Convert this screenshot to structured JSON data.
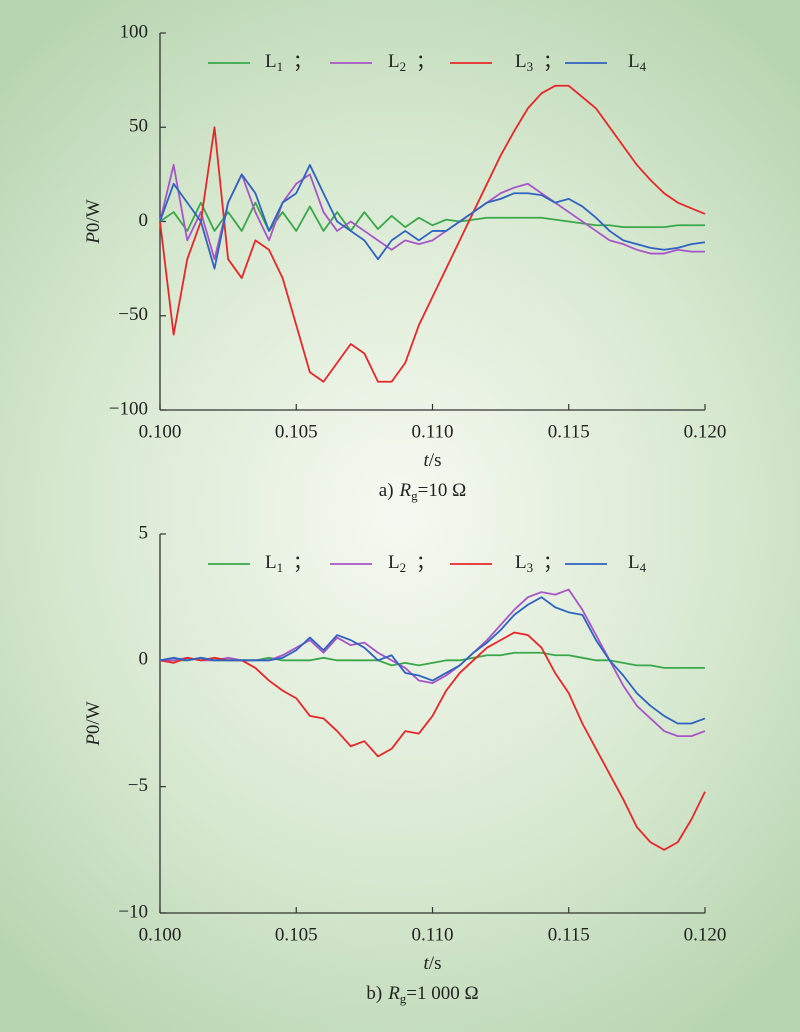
{
  "chart_data": [
    {
      "type": "line",
      "caption": {
        "prefix": "a)",
        "symbol": "R",
        "subscript": "g",
        "value": "=10 Ω"
      },
      "y_label": {
        "symbol": "P",
        "subscript": "0",
        "unit": "/W"
      },
      "x_label": {
        "symbol": "t",
        "unit": "/s"
      },
      "legend_separator": "；",
      "xlim": [
        0.1,
        0.12
      ],
      "xticks": [
        {
          "value": 0.1,
          "label": "0.100"
        },
        {
          "value": 0.105,
          "label": "0.105"
        },
        {
          "value": 0.11,
          "label": "0.110"
        },
        {
          "value": 0.115,
          "label": "0.115"
        },
        {
          "value": 0.12,
          "label": "0.120"
        }
      ],
      "ylim": [
        -100,
        100
      ],
      "yticks": [
        {
          "value": -100,
          "label": "−100"
        },
        {
          "value": -50,
          "label": "−50"
        },
        0,
        50,
        100
      ],
      "x": [
        0.1,
        0.1005,
        0.101,
        0.1015,
        0.102,
        0.1025,
        0.103,
        0.1035,
        0.104,
        0.1045,
        0.105,
        0.1055,
        0.106,
        0.1065,
        0.107,
        0.1075,
        0.108,
        0.1085,
        0.109,
        0.1095,
        0.11,
        0.1105,
        0.111,
        0.1115,
        0.112,
        0.1125,
        0.113,
        0.1135,
        0.114,
        0.1145,
        0.115,
        0.1155,
        0.116,
        0.1165,
        0.117,
        0.1175,
        0.118,
        0.1185,
        0.119,
        0.1195,
        0.12
      ],
      "series": [
        {
          "name": "L1",
          "color": "#3aa84a",
          "values": [
            0,
            5,
            -5,
            10,
            -5,
            5,
            -5,
            10,
            -5,
            5,
            -5,
            8,
            -5,
            5,
            -5,
            5,
            -4,
            3,
            -3,
            2,
            -2,
            1,
            0,
            1,
            2,
            2,
            2,
            2,
            2,
            1,
            0,
            -1,
            -2,
            -2,
            -3,
            -3,
            -3,
            -3,
            -2,
            -2,
            -2
          ]
        },
        {
          "name": "L2",
          "color": "#a855c8",
          "values": [
            0,
            30,
            -10,
            5,
            -20,
            10,
            25,
            5,
            -10,
            10,
            20,
            25,
            5,
            -5,
            0,
            -5,
            -10,
            -15,
            -10,
            -12,
            -10,
            -5,
            0,
            5,
            10,
            15,
            18,
            20,
            15,
            10,
            5,
            0,
            -5,
            -10,
            -12,
            -15,
            -17,
            -17,
            -15,
            -16,
            -16
          ]
        },
        {
          "name": "L3",
          "color": "#e8262a",
          "values": [
            0,
            -60,
            -20,
            0,
            50,
            -20,
            -30,
            -10,
            -15,
            -30,
            -55,
            -80,
            -85,
            -75,
            -65,
            -70,
            -85,
            -85,
            -75,
            -55,
            -40,
            -25,
            -10,
            5,
            20,
            35,
            48,
            60,
            68,
            72,
            72,
            66,
            60,
            50,
            40,
            30,
            22,
            15,
            10,
            7,
            4
          ]
        },
        {
          "name": "L4",
          "color": "#2e63c0",
          "values": [
            0,
            20,
            10,
            0,
            -25,
            10,
            25,
            15,
            -5,
            10,
            15,
            30,
            15,
            0,
            -5,
            -10,
            -20,
            -10,
            -5,
            -10,
            -5,
            -5,
            0,
            5,
            10,
            12,
            15,
            15,
            14,
            10,
            12,
            8,
            2,
            -5,
            -10,
            -12,
            -14,
            -15,
            -14,
            -12,
            -11
          ]
        }
      ]
    },
    {
      "type": "line",
      "caption": {
        "prefix": "b)",
        "symbol": "R",
        "subscript": "g",
        "value": "=1 000 Ω"
      },
      "y_label": {
        "symbol": "P",
        "subscript": "0",
        "unit": "/W"
      },
      "x_label": {
        "symbol": "t",
        "unit": "/s"
      },
      "legend_separator": "；",
      "xlim": [
        0.1,
        0.12
      ],
      "xticks": [
        {
          "value": 0.1,
          "label": "0.100"
        },
        {
          "value": 0.105,
          "label": "0.105"
        },
        {
          "value": 0.11,
          "label": "0.110"
        },
        {
          "value": 0.115,
          "label": "0.115"
        },
        {
          "value": 0.12,
          "label": "0.120"
        }
      ],
      "ylim": [
        -10,
        5
      ],
      "yticks": [
        {
          "value": -10,
          "label": "−10"
        },
        {
          "value": -5,
          "label": "−5"
        },
        0,
        5
      ],
      "x": [
        0.1,
        0.1005,
        0.101,
        0.1015,
        0.102,
        0.1025,
        0.103,
        0.1035,
        0.104,
        0.1045,
        0.105,
        0.1055,
        0.106,
        0.1065,
        0.107,
        0.1075,
        0.108,
        0.1085,
        0.109,
        0.1095,
        0.11,
        0.1105,
        0.111,
        0.1115,
        0.112,
        0.1125,
        0.113,
        0.1135,
        0.114,
        0.1145,
        0.115,
        0.1155,
        0.116,
        0.1165,
        0.117,
        0.1175,
        0.118,
        0.1185,
        0.119,
        0.1195,
        0.12
      ],
      "series": [
        {
          "name": "L1",
          "color": "#3aa84a",
          "values": [
            0,
            0,
            0,
            0.1,
            0,
            0,
            0,
            0,
            0.1,
            0,
            0,
            0,
            0.1,
            0,
            0,
            0,
            0,
            -0.2,
            -0.1,
            -0.2,
            -0.1,
            0,
            0,
            0.1,
            0.2,
            0.2,
            0.3,
            0.3,
            0.3,
            0.2,
            0.2,
            0.1,
            0,
            0,
            -0.1,
            -0.2,
            -0.2,
            -0.3,
            -0.3,
            -0.3,
            -0.3
          ]
        },
        {
          "name": "L2",
          "color": "#a855c8",
          "values": [
            0,
            0,
            0.1,
            0,
            0,
            0.1,
            0,
            0,
            0,
            0.2,
            0.5,
            0.8,
            0.3,
            0.9,
            0.6,
            0.7,
            0.3,
            0,
            -0.3,
            -0.8,
            -0.9,
            -0.6,
            -0.2,
            0.3,
            0.8,
            1.4,
            2.0,
            2.5,
            2.7,
            2.6,
            2.8,
            2.0,
            1.0,
            0,
            -1.0,
            -1.8,
            -2.3,
            -2.8,
            -3.0,
            -3.0,
            -2.8
          ]
        },
        {
          "name": "L3",
          "color": "#e8262a",
          "values": [
            0,
            -0.1,
            0.1,
            0,
            0.1,
            0,
            0,
            -0.3,
            -0.8,
            -1.2,
            -1.5,
            -2.2,
            -2.3,
            -2.8,
            -3.4,
            -3.2,
            -3.8,
            -3.5,
            -2.8,
            -2.9,
            -2.2,
            -1.2,
            -0.5,
            0,
            0.5,
            0.8,
            1.1,
            1.0,
            0.5,
            -0.5,
            -1.3,
            -2.5,
            -3.5,
            -4.5,
            -5.5,
            -6.6,
            -7.2,
            -7.5,
            -7.2,
            -6.3,
            -5.2
          ]
        },
        {
          "name": "L4",
          "color": "#2e63c0",
          "values": [
            0,
            0.1,
            0,
            0.1,
            0,
            0,
            0,
            0,
            0,
            0.1,
            0.4,
            0.9,
            0.4,
            1.0,
            0.8,
            0.5,
            0,
            0.2,
            -0.5,
            -0.6,
            -0.8,
            -0.5,
            -0.2,
            0.3,
            0.7,
            1.2,
            1.8,
            2.2,
            2.5,
            2.1,
            1.9,
            1.8,
            0.8,
            0,
            -0.6,
            -1.3,
            -1.8,
            -2.2,
            -2.5,
            -2.5,
            -2.3
          ]
        }
      ]
    }
  ]
}
